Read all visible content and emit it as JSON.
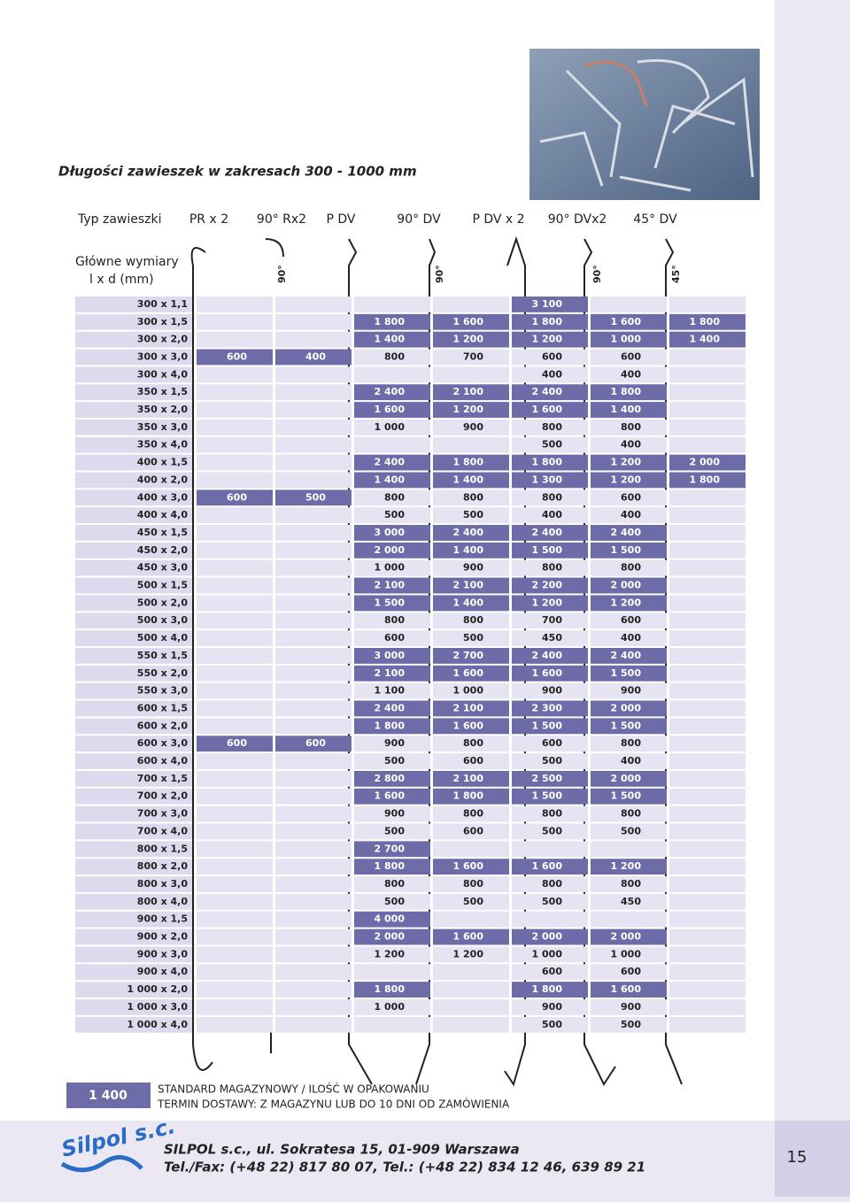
{
  "title": "Długości zawieszek w zakresach 300 - 1000 mm",
  "header": {
    "type_label": "Typ zawieszki",
    "dims_label_1": "Główne wymiary",
    "dims_label_2": "l x d (mm)",
    "columns": [
      "PR x 2",
      "90° Rx2",
      "P DV",
      "90° DV",
      "P DV x 2",
      "90° DVx2",
      "45° DV"
    ],
    "angles": [
      {
        "column": 1,
        "label": "90°"
      },
      {
        "column": 3,
        "label": "90°"
      },
      {
        "column": 5,
        "label": "90°"
      },
      {
        "column": 6,
        "label": "45°"
      }
    ]
  },
  "table": {
    "rows": [
      {
        "label": "300 x 1,1",
        "cells": [
          null,
          null,
          null,
          null,
          "3 100",
          null,
          null
        ],
        "highlight": [
          4
        ]
      },
      {
        "label": "300 x 1,5",
        "cells": [
          null,
          null,
          "1 800",
          "1 600",
          "1 800",
          "1 600",
          "1 800"
        ],
        "highlight": [
          2,
          3,
          4,
          5,
          6
        ]
      },
      {
        "label": "300 x 2,0",
        "cells": [
          null,
          null,
          "1 400",
          "1 200",
          "1 200",
          "1 000",
          "1 400"
        ],
        "highlight": [
          2,
          3,
          4,
          5,
          6
        ]
      },
      {
        "label": "300 x 3,0",
        "cells": [
          "600",
          "400",
          "800",
          "700",
          "600",
          "600",
          null
        ],
        "highlight": [
          0,
          1
        ]
      },
      {
        "label": "300 x 4,0",
        "cells": [
          null,
          null,
          null,
          null,
          "400",
          "400",
          null
        ],
        "highlight": []
      },
      {
        "label": "350 x 1,5",
        "cells": [
          null,
          null,
          "2 400",
          "2 100",
          "2 400",
          "1 800",
          null
        ],
        "highlight": [
          2,
          3,
          4,
          5
        ]
      },
      {
        "label": "350 x 2,0",
        "cells": [
          null,
          null,
          "1 600",
          "1 200",
          "1 600",
          "1 400",
          null
        ],
        "highlight": [
          2,
          3,
          4,
          5
        ]
      },
      {
        "label": "350 x 3,0",
        "cells": [
          null,
          null,
          "1 000",
          "900",
          "800",
          "800",
          null
        ],
        "highlight": []
      },
      {
        "label": "350 x 4,0",
        "cells": [
          null,
          null,
          null,
          null,
          "500",
          "400",
          null
        ],
        "highlight": []
      },
      {
        "label": "400 x 1,5",
        "cells": [
          null,
          null,
          "2 400",
          "1 800",
          "1 800",
          "1 200",
          "2 000"
        ],
        "highlight": [
          2,
          3,
          4,
          5,
          6
        ]
      },
      {
        "label": "400 x 2,0",
        "cells": [
          null,
          null,
          "1 400",
          "1 400",
          "1 300",
          "1 200",
          "1 800"
        ],
        "highlight": [
          2,
          3,
          4,
          5,
          6
        ]
      },
      {
        "label": "400 x 3,0",
        "cells": [
          "600",
          "500",
          "800",
          "800",
          "800",
          "600",
          null
        ],
        "highlight": [
          0,
          1
        ]
      },
      {
        "label": "400 x 4,0",
        "cells": [
          null,
          null,
          "500",
          "500",
          "400",
          "400",
          null
        ],
        "highlight": []
      },
      {
        "label": "450 x 1,5",
        "cells": [
          null,
          null,
          "3 000",
          "2 400",
          "2 400",
          "2 400",
          null
        ],
        "highlight": [
          2,
          3,
          4,
          5
        ]
      },
      {
        "label": "450 x 2,0",
        "cells": [
          null,
          null,
          "2 000",
          "1 400",
          "1 500",
          "1 500",
          null
        ],
        "highlight": [
          2,
          3,
          4,
          5
        ]
      },
      {
        "label": "450 x 3,0",
        "cells": [
          null,
          null,
          "1 000",
          "900",
          "800",
          "800",
          null
        ],
        "highlight": []
      },
      {
        "label": "500 x 1,5",
        "cells": [
          null,
          null,
          "2 100",
          "2 100",
          "2 200",
          "2 000",
          null
        ],
        "highlight": [
          2,
          3,
          4,
          5
        ]
      },
      {
        "label": "500 x 2,0",
        "cells": [
          null,
          null,
          "1 500",
          "1 400",
          "1 200",
          "1 200",
          null
        ],
        "highlight": [
          2,
          3,
          4,
          5
        ]
      },
      {
        "label": "500 x 3,0",
        "cells": [
          null,
          null,
          "800",
          "800",
          "700",
          "600",
          null
        ],
        "highlight": []
      },
      {
        "label": "500 x 4,0",
        "cells": [
          null,
          null,
          "600",
          "500",
          "450",
          "400",
          null
        ],
        "highlight": []
      },
      {
        "label": "550 x 1,5",
        "cells": [
          null,
          null,
          "3 000",
          "2 700",
          "2 400",
          "2 400",
          null
        ],
        "highlight": [
          2,
          3,
          4,
          5
        ]
      },
      {
        "label": "550 x 2,0",
        "cells": [
          null,
          null,
          "2 100",
          "1 600",
          "1 600",
          "1 500",
          null
        ],
        "highlight": [
          2,
          3,
          4,
          5
        ]
      },
      {
        "label": "550 x 3,0",
        "cells": [
          null,
          null,
          "1 100",
          "1 000",
          "900",
          "900",
          null
        ],
        "highlight": []
      },
      {
        "label": "600 x 1,5",
        "cells": [
          null,
          null,
          "2 400",
          "2 100",
          "2 300",
          "2 000",
          null
        ],
        "highlight": [
          2,
          3,
          4,
          5
        ]
      },
      {
        "label": "600 x 2,0",
        "cells": [
          null,
          null,
          "1 800",
          "1 600",
          "1 500",
          "1 500",
          null
        ],
        "highlight": [
          2,
          3,
          4,
          5
        ]
      },
      {
        "label": "600 x 3,0",
        "cells": [
          "600",
          "600",
          "900",
          "800",
          "600",
          "800",
          null
        ],
        "highlight": [
          0,
          1
        ]
      },
      {
        "label": "600 x 4,0",
        "cells": [
          null,
          null,
          "500",
          "600",
          "500",
          "400",
          null
        ],
        "highlight": []
      },
      {
        "label": "700 x 1,5",
        "cells": [
          null,
          null,
          "2 800",
          "2 100",
          "2 500",
          "2 000",
          null
        ],
        "highlight": [
          2,
          3,
          4,
          5
        ]
      },
      {
        "label": "700 x 2,0",
        "cells": [
          null,
          null,
          "1 600",
          "1 800",
          "1 500",
          "1 500",
          null
        ],
        "highlight": [
          2,
          3,
          4,
          5
        ]
      },
      {
        "label": "700 x 3,0",
        "cells": [
          null,
          null,
          "900",
          "800",
          "800",
          "800",
          null
        ],
        "highlight": []
      },
      {
        "label": "700 x 4,0",
        "cells": [
          null,
          null,
          "500",
          "600",
          "500",
          "500",
          null
        ],
        "highlight": []
      },
      {
        "label": "800 x 1,5",
        "cells": [
          null,
          null,
          "2 700",
          null,
          null,
          null,
          null
        ],
        "highlight": [
          2
        ]
      },
      {
        "label": "800 x 2,0",
        "cells": [
          null,
          null,
          "1 800",
          "1 600",
          "1 600",
          "1 200",
          null
        ],
        "highlight": [
          2,
          3,
          4,
          5
        ]
      },
      {
        "label": "800 x 3,0",
        "cells": [
          null,
          null,
          "800",
          "800",
          "800",
          "800",
          null
        ],
        "highlight": []
      },
      {
        "label": "800 x 4,0",
        "cells": [
          null,
          null,
          "500",
          "500",
          "500",
          "450",
          null
        ],
        "highlight": []
      },
      {
        "label": "900 x 1,5",
        "cells": [
          null,
          null,
          "4 000",
          null,
          null,
          null,
          null
        ],
        "highlight": [
          2
        ]
      },
      {
        "label": "900 x 2,0",
        "cells": [
          null,
          null,
          "2 000",
          "1 600",
          "2 000",
          "2 000",
          null
        ],
        "highlight": [
          2,
          3,
          4,
          5
        ]
      },
      {
        "label": "900 x 3,0",
        "cells": [
          null,
          null,
          "1 200",
          "1 200",
          "1 000",
          "1 000",
          null
        ],
        "highlight": []
      },
      {
        "label": "900 x 4,0",
        "cells": [
          null,
          null,
          null,
          null,
          "600",
          "600",
          null
        ],
        "highlight": []
      },
      {
        "label": "1 000 x 2,0",
        "cells": [
          null,
          null,
          "1 800",
          null,
          "1 800",
          "1 600",
          null
        ],
        "highlight": [
          2,
          4,
          5
        ]
      },
      {
        "label": "1 000 x 3,0",
        "cells": [
          null,
          null,
          "1 000",
          null,
          "900",
          "900",
          null
        ],
        "highlight": []
      },
      {
        "label": "1 000 x 4,0",
        "cells": [
          null,
          null,
          null,
          null,
          "500",
          "500",
          null
        ],
        "highlight": []
      }
    ]
  },
  "legend": {
    "sample": "1 400",
    "line_1": "STANDARD MAGAZYNOWY / ILOŚĆ W OPAKOWANIU",
    "line_2": "TERMIN DOSTAWY:  Z MAGAZYNU LUB DO 10 DNI OD ZAMÓWIENIA"
  },
  "footer": {
    "logo": "Silpol s.c.",
    "address": "SILPOL s.c., ul. Sokratesa 15, 01-909 Warszawa",
    "contact": "Tel./Fax: (+48 22) 817 80 07, Tel.: (+48 22) 834 12 46, 639 89 21",
    "page_number": "15"
  }
}
